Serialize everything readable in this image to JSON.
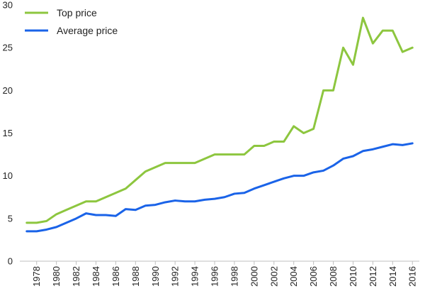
{
  "chart_data": {
    "type": "line",
    "title": "",
    "xlabel": "",
    "ylabel": "",
    "ylim": [
      0,
      30
    ],
    "y_ticks": [
      0,
      5,
      10,
      15,
      20,
      25,
      30
    ],
    "x_tick_labels": [
      "1978",
      "1980",
      "1982",
      "1984",
      "1986",
      "1988",
      "1990",
      "1992",
      "1994",
      "1996",
      "1998",
      "2000",
      "2002",
      "2004",
      "2006",
      "2008",
      "2010",
      "2012",
      "2014",
      "2016"
    ],
    "grid": false,
    "legend_position": "top-left",
    "x": [
      1977,
      1978,
      1979,
      1980,
      1981,
      1982,
      1983,
      1984,
      1985,
      1986,
      1987,
      1988,
      1989,
      1990,
      1991,
      1992,
      1993,
      1994,
      1995,
      1996,
      1997,
      1998,
      1999,
      2000,
      2001,
      2002,
      2003,
      2004,
      2005,
      2006,
      2007,
      2008,
      2009,
      2010,
      2011,
      2012,
      2013,
      2014,
      2015,
      2016
    ],
    "series": [
      {
        "name": "Top price",
        "color": "#8DC63F",
        "values": [
          4.5,
          4.5,
          4.7,
          5.5,
          6.0,
          6.5,
          7.0,
          7.0,
          7.5,
          8.0,
          8.5,
          9.5,
          10.5,
          11.0,
          11.5,
          11.5,
          11.5,
          11.5,
          12.0,
          12.5,
          12.5,
          12.5,
          12.5,
          13.5,
          13.5,
          14.0,
          14.0,
          15.8,
          15.0,
          15.5,
          20.0,
          20.0,
          25.0,
          23.0,
          28.5,
          25.5,
          27.0,
          27.0,
          24.5,
          25.0
        ]
      },
      {
        "name": "Average price",
        "color": "#1A63E8",
        "values": [
          3.5,
          3.5,
          3.7,
          4.0,
          4.5,
          5.0,
          5.6,
          5.4,
          5.4,
          5.3,
          6.1,
          6.0,
          6.5,
          6.6,
          6.9,
          7.1,
          7.0,
          7.0,
          7.2,
          7.3,
          7.5,
          7.9,
          8.0,
          8.5,
          8.9,
          9.3,
          9.7,
          10.0,
          10.0,
          10.4,
          10.6,
          11.2,
          12.0,
          12.3,
          12.9,
          13.1,
          13.4,
          13.7,
          13.6,
          13.8
        ]
      }
    ]
  }
}
